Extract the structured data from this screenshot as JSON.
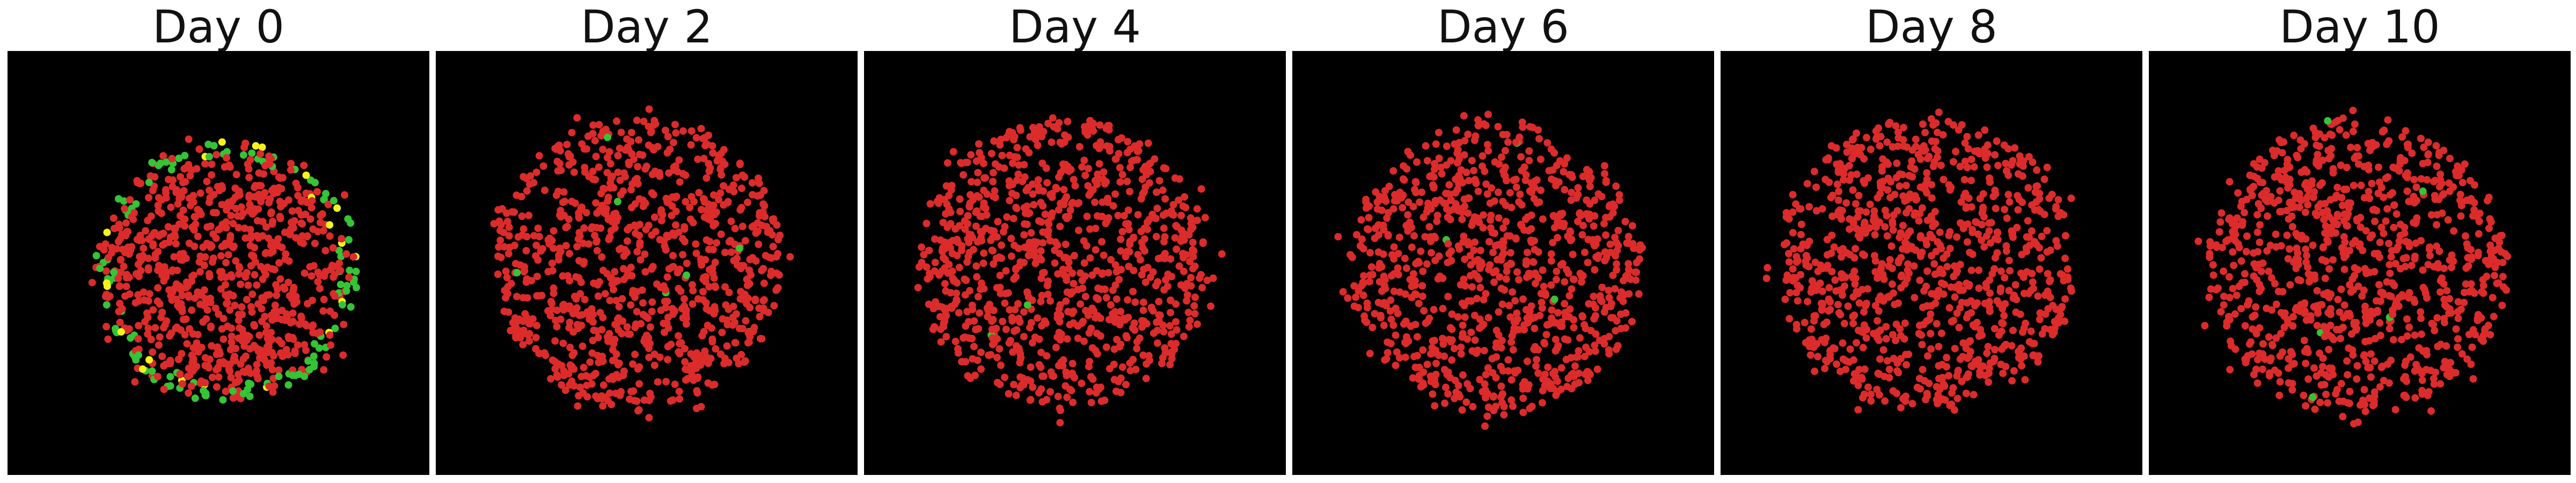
{
  "figure": {
    "panels": [
      {
        "title": "Day 0",
        "pattern": "edge_ring",
        "green_share": 0.18,
        "yellow_share": 0.02
      },
      {
        "title": "Day 2",
        "pattern": "uniform",
        "green_share": 0.006,
        "yellow_share": 0.0
      },
      {
        "title": "Day 4",
        "pattern": "uniform",
        "green_share": 0.003,
        "yellow_share": 0.0
      },
      {
        "title": "Day 6",
        "pattern": "uniform",
        "green_share": 0.005,
        "yellow_share": 0.002
      },
      {
        "title": "Day 8",
        "pattern": "uniform",
        "green_share": 0.002,
        "yellow_share": 0.001
      },
      {
        "title": "Day 10",
        "pattern": "uniform",
        "green_share": 0.006,
        "yellow_share": 0.001
      }
    ],
    "colors": {
      "background": "#000000",
      "cell_red": "#dc2b2b",
      "cell_green": "#35c435",
      "cell_yellow": "#f5f21c"
    },
    "cells_per_panel": 900
  }
}
